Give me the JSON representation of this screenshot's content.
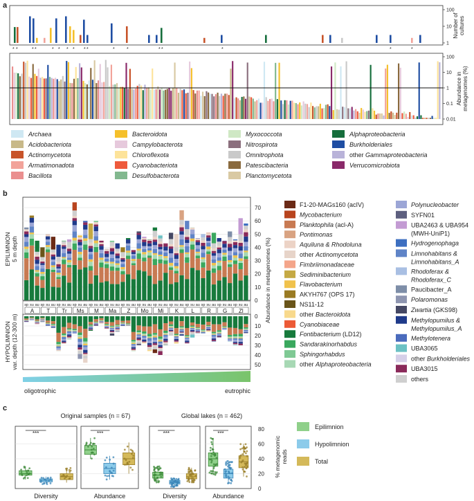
{
  "panel_letters": {
    "a": "a",
    "b": "b",
    "c": "c"
  },
  "panel_a": {
    "top_axis_label_1": "Number of",
    "top_axis_label_2": "cultures",
    "bottom_axis_label_1": "Abundance in",
    "bottom_axis_label_2": "metagenomes (%)",
    "top_ticks": [
      "100",
      "10",
      "1"
    ],
    "bottom_ticks": [
      "100",
      "10",
      "1",
      "0.1",
      "0.01"
    ],
    "legend": [
      {
        "label": "Archaea",
        "color": "#cfe8f3",
        "italic": true
      },
      {
        "label": "Acidobacteriota",
        "color": "#c8b989",
        "italic": true
      },
      {
        "label": "Actinomycetota",
        "color": "#c8542a",
        "italic": true
      },
      {
        "label": "Armatimonadota",
        "color": "#f2a39a",
        "italic": true
      },
      {
        "label": "Bacillota",
        "color": "#ea8f8f",
        "italic": true
      },
      {
        "label": "Bacteroidota",
        "color": "#f5c02b",
        "italic": true
      },
      {
        "label": "Campylobacterota",
        "color": "#e6c9dc",
        "italic": true
      },
      {
        "label": "Chloroflexota",
        "color": "#fde39a",
        "italic": true
      },
      {
        "label": "Cyanobacteriota",
        "color": "#ee5a3c",
        "italic": true
      },
      {
        "label": "Desulfobacterota",
        "color": "#82b88f",
        "italic": true
      },
      {
        "label": "Myxococcota",
        "color": "#cfe8c4",
        "italic": true
      },
      {
        "label": "Nitrospirota",
        "color": "#8b6f7d",
        "italic": true
      },
      {
        "label": "Omnitrophota",
        "color": "#c9c9c9",
        "italic": true
      },
      {
        "label": "Patescibacteria",
        "color": "#8a6a3e",
        "italic": true
      },
      {
        "label": "Planctomycetota",
        "color": "#d9c9a3",
        "italic": true
      },
      {
        "label": "Alphaproteobacteria",
        "color": "#166e3c",
        "italic": true
      },
      {
        "label": "Burkholderiales",
        "color": "#1f4ea3",
        "italic": true
      },
      {
        "label": "other Gammaproteobacteria",
        "color": "#b9b3d9",
        "italic_part": "Gammaproteobacteria"
      },
      {
        "label": "Verrucomicrobiota",
        "color": "#8a2a6a",
        "italic": true
      }
    ]
  },
  "panel_b": {
    "epi_label_1": "EPILIMNION",
    "epi_label_2": "5 m depth",
    "hypo_label_1": "HYPOLIMNION",
    "hypo_label_2": "var. depth (12-300 m)",
    "y_axis_label": "Abundance in metagenomes (%)",
    "epi_ticks": [
      "70",
      "60",
      "50",
      "40",
      "30",
      "20",
      "10",
      "0"
    ],
    "hypo_ticks": [
      "0",
      "10",
      "20",
      "30",
      "40",
      "50"
    ],
    "season_labels": [
      "sp",
      "su",
      "au"
    ],
    "lakes": [
      "A",
      "T",
      "Tr",
      "Ms",
      "M",
      "Ma",
      "Z",
      "Mo",
      "Mi",
      "K",
      "L",
      "R",
      "G",
      "Zl"
    ],
    "gradient_left": "oligotrophic",
    "gradient_right": "eutrophic",
    "legend_left": [
      {
        "label": "F1-20-MAGs160 (acIV)",
        "color": "#6b2a16"
      },
      {
        "label": "Mycobacterium",
        "color": "#b8441e",
        "italic": true
      },
      {
        "label": "Planktophila (acl-A)",
        "color": "#c87a52",
        "italic_part": "Planktophila"
      },
      {
        "label": "Pontimonas",
        "color": "#d9a382",
        "italic": true
      },
      {
        "label": "Aquiluna & Rhodoluna",
        "color": "#ecd3c6",
        "italic": true
      },
      {
        "label": "other Actinomycetota",
        "color": "#e7d4c9",
        "italic_part": "Actinomycetota"
      },
      {
        "label": "Fimbriimonadaceae",
        "color": "#f4a58a",
        "italic": true
      },
      {
        "label": "Sediminibacterium",
        "color": "#c5a944",
        "italic": true
      },
      {
        "label": "Flavobacterium",
        "color": "#f0c24c",
        "italic": true
      },
      {
        "label": "AKYH767 (OPS 17)",
        "color": "#9a7b23"
      },
      {
        "label": "NS11-12",
        "color": "#6a551a"
      },
      {
        "label": "other Bacteroidota",
        "color": "#f8d98c",
        "italic_part": "Bacteroidota"
      },
      {
        "label": "Cyanobiaceae",
        "color": "#ec5a36",
        "italic": true
      },
      {
        "label": "Fontibacterium (LD12)",
        "color": "#177a3c",
        "italic_part": "Fontibacterium"
      },
      {
        "label": "Sandarakinorhabdus",
        "color": "#3aa85e",
        "italic": true
      },
      {
        "label": "Sphingorhabdus",
        "color": "#7fc994",
        "italic": true
      },
      {
        "label": "other Alphaproteobacteria",
        "color": "#a7d8b4",
        "italic_part": "Alphaproteobacteria"
      }
    ],
    "legend_right": [
      {
        "label": "Polynucleobacter",
        "color": "#9ca6d6",
        "italic": true
      },
      {
        "label": "SYFN01",
        "color": "#5d5f7f"
      },
      {
        "label": "UBA2463 & UBA954",
        "label2": "(MWH-UniP1)",
        "color": "#c39bd3"
      },
      {
        "label": "Hydrogenophaga",
        "color": "#3d6fc0",
        "italic": true
      },
      {
        "label": "Limnohabitans &",
        "label2": "Limnohabitans_A",
        "color": "#5f84c7",
        "italic": true
      },
      {
        "label": "Rhodoferax &",
        "label2": "Rhodoferax_C",
        "color": "#a9bfe3",
        "italic": true
      },
      {
        "label": "Paucibacter_A",
        "color": "#7e8ea8"
      },
      {
        "label": "Polaromonas",
        "color": "#8e95b0",
        "italic": true
      },
      {
        "label": "Zwartia (GKS98)",
        "color": "#454864",
        "italic_part": "Zwartia"
      },
      {
        "label": "Methylopumilus &",
        "label2": "Methylopumilus_A",
        "color": "#1f3a8a",
        "italic": true
      },
      {
        "label": "Methylotenera",
        "color": "#4a6bbd",
        "italic": true
      },
      {
        "label": "UBA3065",
        "color": "#6cc1c4"
      },
      {
        "label": "other Burkholderiales",
        "color": "#d5cfe8",
        "italic_part": "Burkholderiales"
      },
      {
        "label": "UBA3015",
        "color": "#8a2a5a"
      },
      {
        "label": "others",
        "color": "#cfcfcf"
      }
    ]
  },
  "panel_c": {
    "title_1": "Original samples (n = 67)",
    "title_2": "Global lakes (n = 462)",
    "xlabels": [
      "Diversity",
      "Abundance",
      "Diversity",
      "Abundance"
    ],
    "y_ticks": [
      "0",
      "20",
      "40",
      "60",
      "80"
    ],
    "y_label_1": "% metagenomic",
    "y_label_2": "reads",
    "sig": "***",
    "legend": [
      {
        "label": "Epilimnion",
        "color": "#8fd08a"
      },
      {
        "label": "Hypolimnion",
        "color": "#8ccbea"
      },
      {
        "label": "Total",
        "color": "#d4b95a"
      }
    ]
  }
}
